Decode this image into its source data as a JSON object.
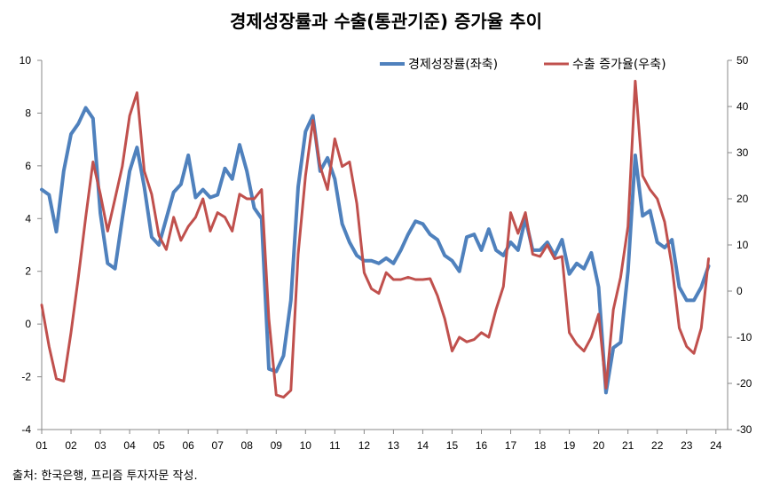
{
  "chart_data": {
    "type": "line",
    "title": "경제성장률과 수출(통관기준) 증가율 추이",
    "source": "출처: 한국은행, 프리즘 투자자문 작성.",
    "categories": [
      "01",
      "02",
      "03",
      "04",
      "05",
      "06",
      "07",
      "08",
      "09",
      "10",
      "11",
      "12",
      "13",
      "14",
      "15",
      "16",
      "17",
      "18",
      "19",
      "20",
      "21",
      "22",
      "23",
      "24"
    ],
    "left_axis": {
      "range": [
        -4,
        10
      ],
      "ticks": [
        "-4",
        "-2",
        "0",
        "2",
        "4",
        "6",
        "8",
        "10"
      ]
    },
    "right_axis": {
      "range": [
        -30,
        50
      ],
      "ticks": [
        "-30",
        "-20",
        "-10",
        "0",
        "10",
        "20",
        "30",
        "40",
        "50"
      ]
    },
    "legend": {
      "placement": "top-right"
    },
    "series": [
      {
        "name": "경제성장률(좌축)",
        "axis": "left",
        "color": "#4f81bd",
        "points": [
          [
            2001.0,
            5.1
          ],
          [
            2001.25,
            4.9
          ],
          [
            2001.5,
            3.5
          ],
          [
            2001.75,
            5.8
          ],
          [
            2002.0,
            7.2
          ],
          [
            2002.25,
            7.6
          ],
          [
            2002.5,
            8.2
          ],
          [
            2002.75,
            7.8
          ],
          [
            2003.0,
            4.2
          ],
          [
            2003.25,
            2.3
          ],
          [
            2003.5,
            2.1
          ],
          [
            2003.75,
            4.0
          ],
          [
            2004.0,
            5.8
          ],
          [
            2004.25,
            6.7
          ],
          [
            2004.5,
            5.2
          ],
          [
            2004.75,
            3.3
          ],
          [
            2005.0,
            3.0
          ],
          [
            2005.25,
            4.0
          ],
          [
            2005.5,
            5.0
          ],
          [
            2005.75,
            5.3
          ],
          [
            2006.0,
            6.4
          ],
          [
            2006.25,
            4.8
          ],
          [
            2006.5,
            5.1
          ],
          [
            2006.75,
            4.8
          ],
          [
            2007.0,
            4.9
          ],
          [
            2007.25,
            5.9
          ],
          [
            2007.5,
            5.5
          ],
          [
            2007.75,
            6.8
          ],
          [
            2008.0,
            5.8
          ],
          [
            2008.25,
            4.4
          ],
          [
            2008.5,
            4.0
          ],
          [
            2008.75,
            -1.7
          ],
          [
            2009.0,
            -1.8
          ],
          [
            2009.25,
            -1.2
          ],
          [
            2009.5,
            0.9
          ],
          [
            2009.75,
            5.2
          ],
          [
            2010.0,
            7.3
          ],
          [
            2010.25,
            7.9
          ],
          [
            2010.5,
            5.8
          ],
          [
            2010.75,
            6.3
          ],
          [
            2011.0,
            5.5
          ],
          [
            2011.25,
            3.8
          ],
          [
            2011.5,
            3.1
          ],
          [
            2011.75,
            2.6
          ],
          [
            2012.0,
            2.4
          ],
          [
            2012.25,
            2.4
          ],
          [
            2012.5,
            2.3
          ],
          [
            2012.75,
            2.5
          ],
          [
            2013.0,
            2.3
          ],
          [
            2013.25,
            2.8
          ],
          [
            2013.5,
            3.4
          ],
          [
            2013.75,
            3.9
          ],
          [
            2014.0,
            3.8
          ],
          [
            2014.25,
            3.4
          ],
          [
            2014.5,
            3.2
          ],
          [
            2014.75,
            2.6
          ],
          [
            2015.0,
            2.4
          ],
          [
            2015.25,
            2.0
          ],
          [
            2015.5,
            3.3
          ],
          [
            2015.75,
            3.4
          ],
          [
            2016.0,
            2.8
          ],
          [
            2016.25,
            3.6
          ],
          [
            2016.5,
            2.8
          ],
          [
            2016.75,
            2.6
          ],
          [
            2017.0,
            3.1
          ],
          [
            2017.25,
            2.8
          ],
          [
            2017.5,
            4.0
          ],
          [
            2017.75,
            2.8
          ],
          [
            2018.0,
            2.8
          ],
          [
            2018.25,
            3.1
          ],
          [
            2018.5,
            2.6
          ],
          [
            2018.75,
            3.2
          ],
          [
            2019.0,
            1.9
          ],
          [
            2019.25,
            2.3
          ],
          [
            2019.5,
            2.1
          ],
          [
            2019.75,
            2.7
          ],
          [
            2020.0,
            1.4
          ],
          [
            2020.25,
            -2.6
          ],
          [
            2020.5,
            -0.9
          ],
          [
            2020.75,
            -0.7
          ],
          [
            2021.0,
            2.0
          ],
          [
            2021.25,
            6.4
          ],
          [
            2021.5,
            4.1
          ],
          [
            2021.75,
            4.3
          ],
          [
            2022.0,
            3.1
          ],
          [
            2022.25,
            2.9
          ],
          [
            2022.5,
            3.2
          ],
          [
            2022.75,
            1.4
          ],
          [
            2023.0,
            0.9
          ],
          [
            2023.25,
            0.9
          ],
          [
            2023.5,
            1.4
          ],
          [
            2023.75,
            2.2
          ]
        ]
      },
      {
        "name": "수출 증가율(우축)",
        "axis": "right",
        "color": "#c0504d",
        "points": [
          [
            2001.0,
            -3
          ],
          [
            2001.25,
            -12
          ],
          [
            2001.5,
            -19
          ],
          [
            2001.75,
            -19.5
          ],
          [
            2002.0,
            -9
          ],
          [
            2002.25,
            3
          ],
          [
            2002.5,
            16
          ],
          [
            2002.75,
            28
          ],
          [
            2003.0,
            21
          ],
          [
            2003.25,
            13
          ],
          [
            2003.5,
            20
          ],
          [
            2003.75,
            27
          ],
          [
            2004.0,
            38
          ],
          [
            2004.25,
            43
          ],
          [
            2004.5,
            26
          ],
          [
            2004.75,
            21
          ],
          [
            2005.0,
            12
          ],
          [
            2005.25,
            9
          ],
          [
            2005.5,
            16
          ],
          [
            2005.75,
            11
          ],
          [
            2006.0,
            14
          ],
          [
            2006.25,
            16
          ],
          [
            2006.5,
            20
          ],
          [
            2006.75,
            13
          ],
          [
            2007.0,
            17
          ],
          [
            2007.25,
            16
          ],
          [
            2007.5,
            13
          ],
          [
            2007.75,
            21
          ],
          [
            2008.0,
            20
          ],
          [
            2008.25,
            20
          ],
          [
            2008.5,
            22
          ],
          [
            2008.75,
            -6
          ],
          [
            2009.0,
            -22.5
          ],
          [
            2009.25,
            -23
          ],
          [
            2009.5,
            -21.5
          ],
          [
            2009.75,
            8
          ],
          [
            2010.0,
            25
          ],
          [
            2010.25,
            37
          ],
          [
            2010.5,
            27
          ],
          [
            2010.75,
            22
          ],
          [
            2011.0,
            33
          ],
          [
            2011.25,
            27
          ],
          [
            2011.5,
            28
          ],
          [
            2011.75,
            19
          ],
          [
            2012.0,
            4
          ],
          [
            2012.25,
            0.5
          ],
          [
            2012.5,
            -0.5
          ],
          [
            2012.75,
            4
          ],
          [
            2013.0,
            2.5
          ],
          [
            2013.25,
            2.5
          ],
          [
            2013.5,
            3
          ],
          [
            2013.75,
            2.5
          ],
          [
            2014.0,
            2.5
          ],
          [
            2014.25,
            2.7
          ],
          [
            2014.5,
            -1
          ],
          [
            2014.75,
            -6
          ],
          [
            2015.0,
            -13
          ],
          [
            2015.25,
            -10
          ],
          [
            2015.5,
            -11
          ],
          [
            2015.75,
            -10.5
          ],
          [
            2016.0,
            -9
          ],
          [
            2016.25,
            -10
          ],
          [
            2016.5,
            -4
          ],
          [
            2016.75,
            1
          ],
          [
            2017.0,
            17
          ],
          [
            2017.25,
            12.5
          ],
          [
            2017.5,
            17
          ],
          [
            2017.75,
            8
          ],
          [
            2018.0,
            7.5
          ],
          [
            2018.25,
            10
          ],
          [
            2018.5,
            7
          ],
          [
            2018.75,
            7.5
          ],
          [
            2019.0,
            -9
          ],
          [
            2019.25,
            -11.5
          ],
          [
            2019.5,
            -13
          ],
          [
            2019.75,
            -10
          ],
          [
            2020.0,
            -5
          ],
          [
            2020.25,
            -21
          ],
          [
            2020.5,
            -4
          ],
          [
            2020.75,
            3
          ],
          [
            2021.0,
            14
          ],
          [
            2021.25,
            45.5
          ],
          [
            2021.5,
            25
          ],
          [
            2021.75,
            22
          ],
          [
            2022.0,
            20
          ],
          [
            2022.25,
            15
          ],
          [
            2022.5,
            5.5
          ],
          [
            2022.75,
            -8
          ],
          [
            2023.0,
            -12
          ],
          [
            2023.25,
            -13.5
          ],
          [
            2023.5,
            -8
          ],
          [
            2023.75,
            7
          ]
        ]
      }
    ]
  }
}
